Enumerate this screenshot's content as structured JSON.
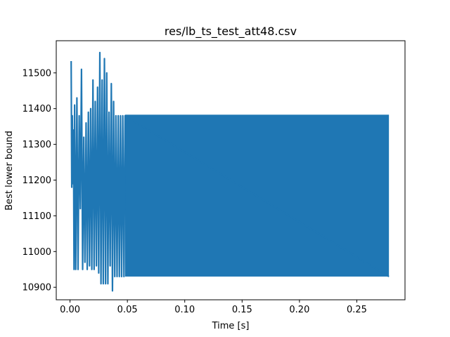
{
  "chart_data": {
    "type": "line",
    "title": "res/lb_ts_test_att48.csv",
    "xlabel": "Time [s]",
    "ylabel": "Best lower bound",
    "xlim": [
      -0.012,
      0.292
    ],
    "ylim": [
      10865,
      11590
    ],
    "xticks": [
      0.0,
      0.05,
      0.1,
      0.15,
      0.2,
      0.25
    ],
    "xtick_labels": [
      "0.00",
      "0.05",
      "0.10",
      "0.15",
      "0.20",
      "0.25"
    ],
    "yticks": [
      10900,
      11000,
      11100,
      11200,
      11300,
      11400,
      11500
    ],
    "ytick_labels": [
      "10900",
      "11000",
      "11100",
      "11200",
      "11300",
      "11400",
      "11500"
    ],
    "grid": false,
    "series": [
      {
        "color": "#1f77b4",
        "x": [
          0.001,
          0.0015,
          0.002,
          0.0025,
          0.003,
          0.0035,
          0.004,
          0.005,
          0.006,
          0.007,
          0.008,
          0.009,
          0.01,
          0.011,
          0.012,
          0.013,
          0.014,
          0.015,
          0.016,
          0.017,
          0.018,
          0.019,
          0.02,
          0.021,
          0.022,
          0.023,
          0.024,
          0.025,
          0.026,
          0.027,
          0.028,
          0.029,
          0.03,
          0.031,
          0.032,
          0.033,
          0.034,
          0.035,
          0.036,
          0.037,
          0.038,
          0.039,
          0.04,
          0.041,
          0.042,
          0.043,
          0.044,
          0.045,
          0.046,
          0.047,
          0.048,
          0.278
        ],
        "y": [
          11533,
          11180,
          11380,
          11190,
          11340,
          10950,
          11410,
          10950,
          11430,
          10950,
          11380,
          11120,
          11510,
          10950,
          11320,
          10970,
          11360,
          10950,
          11390,
          10960,
          11400,
          10950,
          11480,
          10950,
          11420,
          10960,
          11460,
          10940,
          11557,
          10910,
          11480,
          10910,
          11540,
          10910,
          11500,
          10910,
          11390,
          10960,
          11470,
          10890,
          11420,
          10930,
          11380,
          10930,
          11380,
          10930,
          11380,
          10930,
          11380,
          10930,
          11380,
          10930
        ],
        "dense_band": {
          "x_start": 0.048,
          "x_end": 0.278,
          "y_low": 10930,
          "y_high": 11383
        }
      }
    ]
  }
}
